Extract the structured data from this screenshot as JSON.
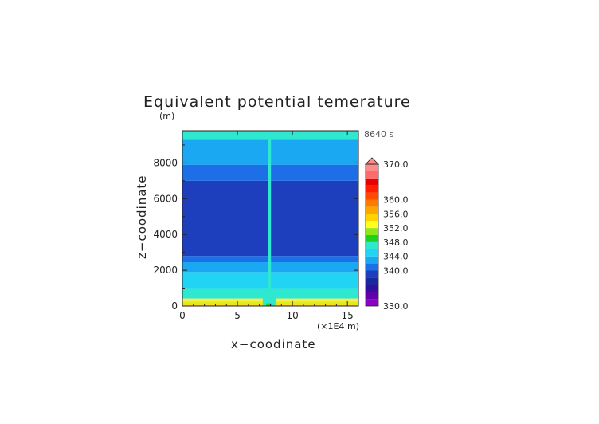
{
  "chart_data": {
    "type": "heatmap",
    "title": "Equivalent potential temerature",
    "xlabel": "x−coodinate",
    "ylabel": "z−coodinate",
    "x_unit": "(×1E4 m)",
    "y_unit": "(m)",
    "time_label": "8640 s",
    "xlim": [
      0,
      16
    ],
    "ylim": [
      0,
      9800
    ],
    "x_ticks": [
      "0",
      "5",
      "10",
      "15"
    ],
    "y_ticks": [
      "0",
      "2000",
      "4000",
      "6000",
      "8000"
    ],
    "grid": false,
    "legend": "right",
    "levels": [
      {
        "lo": 0,
        "hi": 80,
        "color": "#ffd200"
      },
      {
        "lo": 80,
        "hi": 260,
        "color": "#d8ef18"
      },
      {
        "lo": 260,
        "hi": 420,
        "color": "#ffe84a"
      },
      {
        "lo": 420,
        "hi": 1000,
        "color": "#2ee8d0"
      },
      {
        "lo": 1000,
        "hi": 1900,
        "color": "#22d4f4"
      },
      {
        "lo": 1900,
        "hi": 2450,
        "color": "#1aa8f2"
      },
      {
        "lo": 2450,
        "hi": 2800,
        "color": "#1d6fe8"
      },
      {
        "lo": 2800,
        "hi": 7000,
        "color": "#1e3fbd"
      },
      {
        "lo": 7000,
        "hi": 7900,
        "color": "#1d6fe8"
      },
      {
        "lo": 7900,
        "hi": 9300,
        "color": "#1aa8f2"
      },
      {
        "lo": 9300,
        "hi": 9800,
        "color": "#2ee8d0"
      }
    ],
    "colorbar": {
      "vmin": 330,
      "vmax": 370,
      "tick_labels": [
        "370.0",
        "360.0",
        "356.0",
        "352.0",
        "348.0",
        "344.0",
        "340.0",
        "330.0"
      ],
      "tick_values": [
        370,
        360,
        356,
        352,
        348,
        344,
        340,
        330
      ],
      "colors": [
        {
          "lo": 330,
          "hi": 332,
          "color": "#8b00c4"
        },
        {
          "lo": 332,
          "hi": 334,
          "color": "#6000a8"
        },
        {
          "lo": 334,
          "hi": 336,
          "color": "#30109c"
        },
        {
          "lo": 336,
          "hi": 338,
          "color": "#1a2a9e"
        },
        {
          "lo": 338,
          "hi": 340,
          "color": "#1e3fbd"
        },
        {
          "lo": 340,
          "hi": 342,
          "color": "#1d6fe8"
        },
        {
          "lo": 342,
          "hi": 344,
          "color": "#1aa8f2"
        },
        {
          "lo": 344,
          "hi": 346,
          "color": "#22d4f4"
        },
        {
          "lo": 346,
          "hi": 348,
          "color": "#2ee8d0"
        },
        {
          "lo": 348,
          "hi": 350,
          "color": "#22d01e"
        },
        {
          "lo": 350,
          "hi": 352,
          "color": "#8ee818"
        },
        {
          "lo": 352,
          "hi": 354,
          "color": "#ffff1e"
        },
        {
          "lo": 354,
          "hi": 356,
          "color": "#ffd200"
        },
        {
          "lo": 356,
          "hi": 358,
          "color": "#ffa500"
        },
        {
          "lo": 358,
          "hi": 360,
          "color": "#ff7a00"
        },
        {
          "lo": 360,
          "hi": 362,
          "color": "#ff4a00"
        },
        {
          "lo": 362,
          "hi": 364,
          "color": "#ff1e00"
        },
        {
          "lo": 364,
          "hi": 366,
          "color": "#e80000"
        },
        {
          "lo": 366,
          "hi": 368,
          "color": "#ff6a6a"
        }
      ],
      "overflow_color": "#ff8a8a"
    },
    "plume": {
      "x_center": 7.9,
      "half_width": 0.15,
      "top": 9800,
      "color": "#2ee8d0",
      "base_half_width": 0.6,
      "base_top": 700,
      "base_color": "#2ee8d0",
      "core_color": "#22d01e"
    }
  }
}
